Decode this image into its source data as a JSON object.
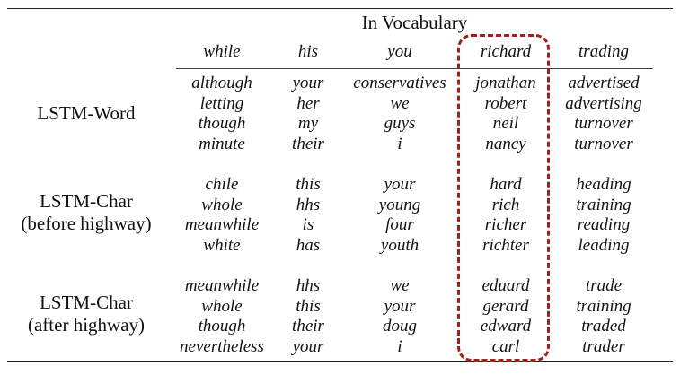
{
  "table": {
    "title": "In Vocabulary",
    "headers": [
      "while",
      "his",
      "you",
      "richard",
      "trading"
    ],
    "groups": [
      {
        "label_lines": [
          "LSTM-Word"
        ],
        "rows": [
          [
            "although",
            "your",
            "conservatives",
            "jonathan",
            "advertised"
          ],
          [
            "letting",
            "her",
            "we",
            "robert",
            "advertising"
          ],
          [
            "though",
            "my",
            "guys",
            "neil",
            "turnover"
          ],
          [
            "minute",
            "their",
            "i",
            "nancy",
            "turnover"
          ]
        ]
      },
      {
        "label_lines": [
          "LSTM-Char",
          "(before highway)"
        ],
        "rows": [
          [
            "chile",
            "this",
            "your",
            "hard",
            "heading"
          ],
          [
            "whole",
            "hhs",
            "young",
            "rich",
            "training"
          ],
          [
            "meanwhile",
            "is",
            "four",
            "richer",
            "reading"
          ],
          [
            "white",
            "has",
            "youth",
            "richter",
            "leading"
          ]
        ]
      },
      {
        "label_lines": [
          "LSTM-Char",
          "(after highway)"
        ],
        "rows": [
          [
            "meanwhile",
            "hhs",
            "we",
            "eduard",
            "trade"
          ],
          [
            "whole",
            "this",
            "your",
            "gerard",
            "training"
          ],
          [
            "though",
            "their",
            "doug",
            "edward",
            "traded"
          ],
          [
            "nevertheless",
            "your",
            "i",
            "carl",
            "trader"
          ]
        ]
      }
    ],
    "highlight": {
      "column": "richard",
      "color": "#a3201a",
      "style": "dashed rounded box"
    }
  }
}
